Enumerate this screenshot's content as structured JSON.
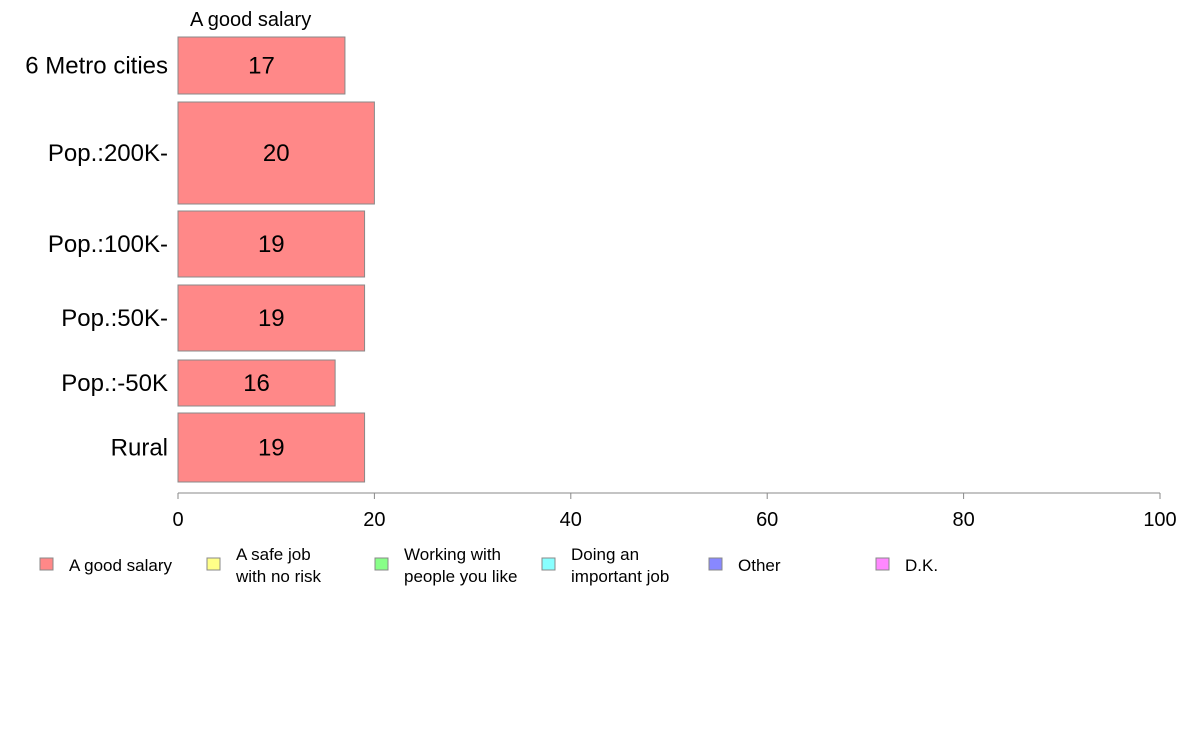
{
  "chart_data": {
    "type": "bar",
    "orientation": "horizontal",
    "stacked": true,
    "title": "",
    "series_title": "A good salary",
    "categories": [
      "6 Metro cities",
      "Pop.:200K-",
      "Pop.:100K-",
      "Pop.:50K-",
      "Pop.:-50K",
      "Rural"
    ],
    "series": [
      {
        "name": "A good salary",
        "color": "#ff8888",
        "values": [
          17,
          20,
          19,
          19,
          16,
          19
        ]
      }
    ],
    "xlim": [
      0,
      100
    ],
    "xticks": [
      "0",
      "20",
      "40",
      "60",
      "80",
      "100"
    ],
    "grid": false,
    "legend": {
      "position": "bottom",
      "items": [
        {
          "lines": [
            "A good salary"
          ],
          "color": "#ff8888"
        },
        {
          "lines": [
            "A safe job",
            "with no risk"
          ],
          "color": "#ffff88"
        },
        {
          "lines": [
            "Working with",
            "people you like"
          ],
          "color": "#88ff88"
        },
        {
          "lines": [
            "Doing an",
            "important job"
          ],
          "color": "#88ffff"
        },
        {
          "lines": [
            "Other"
          ],
          "color": "#8888ff"
        },
        {
          "lines": [
            "D.K."
          ],
          "color": "#ff88ff"
        }
      ]
    }
  }
}
